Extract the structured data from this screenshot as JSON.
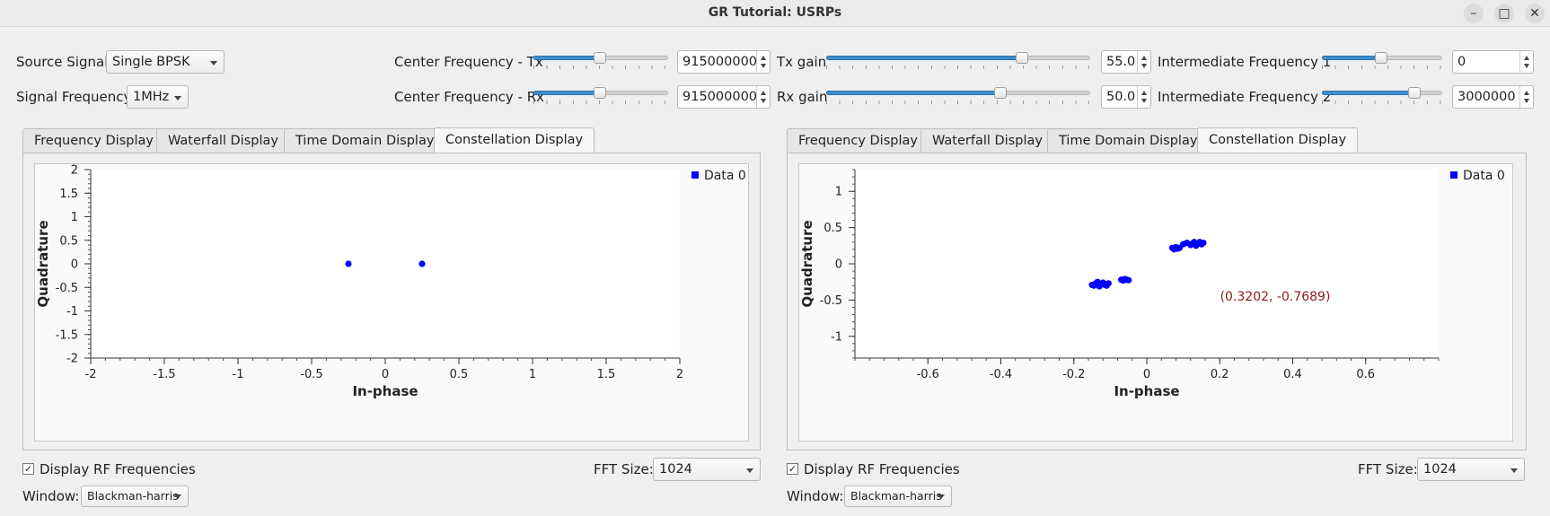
{
  "window": {
    "title": "GR Tutorial: USRPs"
  },
  "controls": {
    "source_signal_label": "Source Signal:",
    "source_signal_value": "Single BPSK",
    "signal_frequency_label": "Signal Frequency:",
    "signal_frequency_value": "1MHz",
    "center_tx_label": "Center Frequency - Tx",
    "center_tx_value": "915000000",
    "center_rx_label": "Center Frequency - Rx",
    "center_rx_value": "915000000",
    "tx_gain_label": "Tx gain",
    "tx_gain_value": "55.0",
    "rx_gain_label": "Rx gain",
    "rx_gain_value": "50.0",
    "if1_label": "Intermediate Frequency 1",
    "if1_value": "0",
    "if2_label": "Intermediate Frequency 2",
    "if2_value": "3000000",
    "sliders": {
      "center_tx": 0.49,
      "center_rx": 0.49,
      "tx_gain": 0.74,
      "rx_gain": 0.66,
      "if1": 0.49,
      "if2": 0.77
    }
  },
  "tabs": [
    "Frequency Display",
    "Waterfall Display",
    "Time Domain Display",
    "Constellation Display"
  ],
  "active_tab": "Constellation Display",
  "panel_bottom": {
    "display_rf_label": "Display RF Frequencies",
    "display_rf_checked": true,
    "fft_size_label": "FFT Size:",
    "fft_size_value": "1024",
    "window_label": "Window:",
    "window_value": "Blackman-harris"
  },
  "colors": {
    "point": "#0000ff",
    "slider_fill": "#3d8fd0",
    "readout": "#8b1a1a"
  },
  "chart_data": [
    {
      "type": "scatter",
      "xlabel": "In-phase",
      "ylabel": "Quadrature",
      "xlim": [
        -2,
        2
      ],
      "ylim": [
        -2,
        2
      ],
      "xticks": [
        -2,
        -1.5,
        -1,
        -0.5,
        0,
        0.5,
        1,
        1.5,
        2
      ],
      "yticks": [
        -2,
        -1.5,
        -1,
        -0.5,
        0,
        0.5,
        1,
        1.5,
        2
      ],
      "grid": false,
      "legend": "top-right",
      "series": [
        {
          "name": "Data 0",
          "points": [
            [
              -0.25,
              0
            ],
            [
              0.25,
              0
            ]
          ]
        }
      ]
    },
    {
      "type": "scatter",
      "xlabel": "In-phase",
      "ylabel": "Quadrature",
      "xlim": [
        -0.8,
        0.8
      ],
      "ylim": [
        -1.3,
        1.3
      ],
      "xticks": [
        -0.6,
        -0.4,
        -0.2,
        0,
        0.2,
        0.4,
        0.6
      ],
      "yticks": [
        -1,
        -0.5,
        0,
        0.5,
        1
      ],
      "grid": false,
      "legend": "top-right",
      "readout": "(0.3202, -0.7689)",
      "series": [
        {
          "name": "Data 0",
          "points": [
            [
              -0.15,
              -0.29
            ],
            [
              -0.14,
              -0.27
            ],
            [
              -0.13,
              -0.31
            ],
            [
              -0.12,
              -0.26
            ],
            [
              -0.11,
              -0.3
            ],
            [
              -0.145,
              -0.3
            ],
            [
              -0.125,
              -0.28
            ],
            [
              -0.105,
              -0.27
            ],
            [
              -0.135,
              -0.25
            ],
            [
              -0.115,
              -0.29
            ],
            [
              -0.07,
              -0.22
            ],
            [
              -0.065,
              -0.23
            ],
            [
              -0.06,
              -0.21
            ],
            [
              -0.055,
              -0.22
            ],
            [
              -0.05,
              -0.225
            ],
            [
              0.07,
              0.22
            ],
            [
              0.075,
              0.2
            ],
            [
              0.08,
              0.23
            ],
            [
              0.085,
              0.21
            ],
            [
              0.09,
              0.22
            ],
            [
              0.1,
              0.27
            ],
            [
              0.11,
              0.29
            ],
            [
              0.12,
              0.26
            ],
            [
              0.13,
              0.3
            ],
            [
              0.14,
              0.28
            ],
            [
              0.15,
              0.27
            ],
            [
              0.125,
              0.28
            ],
            [
              0.135,
              0.25
            ],
            [
              0.145,
              0.3
            ],
            [
              0.155,
              0.29
            ]
          ]
        }
      ]
    }
  ]
}
